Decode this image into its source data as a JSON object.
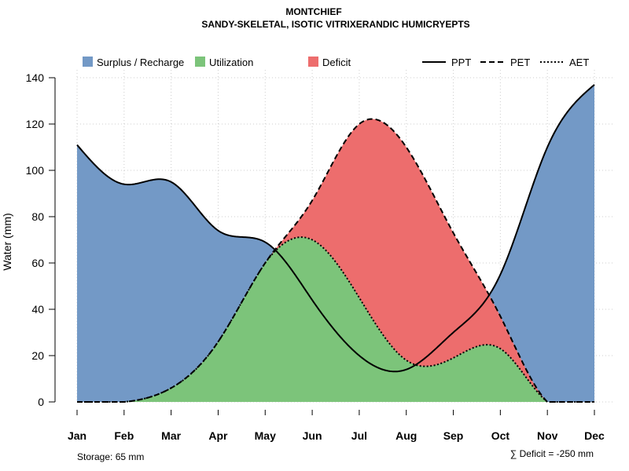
{
  "chart_data": {
    "type": "area",
    "title": "MONTCHIEF",
    "subtitle": "SANDY-SKELETAL, ISOTIC VITRIXERANDIC HUMICRYEPTS",
    "xlabel": "",
    "ylabel": "Water (mm)",
    "categories": [
      "Jan",
      "Feb",
      "Mar",
      "Apr",
      "May",
      "Jun",
      "Jul",
      "Aug",
      "Sep",
      "Oct",
      "Nov",
      "Dec"
    ],
    "yticks": [
      "0",
      "20",
      "40",
      "60",
      "80",
      "100",
      "120",
      "140"
    ],
    "ylim": [
      0,
      140
    ],
    "grid": true,
    "series": [
      {
        "name": "PPT",
        "line_style": "solid",
        "values": [
          111,
          94,
          95,
          74,
          69,
          44,
          20,
          14,
          30,
          55,
          110,
          137
        ]
      },
      {
        "name": "PET",
        "line_style": "dashed",
        "values": [
          0,
          0,
          6,
          26,
          60,
          87,
          120,
          110,
          73,
          37,
          0,
          0
        ]
      },
      {
        "name": "AET",
        "line_style": "dotted",
        "values": [
          0,
          0,
          6,
          26,
          60,
          70,
          45,
          18,
          19,
          23,
          0,
          0
        ]
      }
    ],
    "legend": [
      {
        "label": "Surplus / Recharge",
        "kind": "fill",
        "color": "#7399C6"
      },
      {
        "label": "Utilization",
        "kind": "fill",
        "color": "#7CC47A"
      },
      {
        "label": "Deficit",
        "kind": "fill",
        "color": "#ED6D6D"
      },
      {
        "label": "PPT",
        "kind": "line",
        "dash": "solid"
      },
      {
        "label": "PET",
        "kind": "line",
        "dash": "dashed"
      },
      {
        "label": "AET",
        "kind": "line",
        "dash": "dotted"
      }
    ],
    "legend_position": "top",
    "annotations": {
      "storage": "Storage: 65 mm",
      "deficit": "∑ Deficit = -250 mm"
    },
    "colors": {
      "surplus": "#7399C6",
      "utilization": "#7CC47A",
      "deficit": "#ED6D6D",
      "grid": "#cccccc",
      "line": "#000000"
    }
  }
}
